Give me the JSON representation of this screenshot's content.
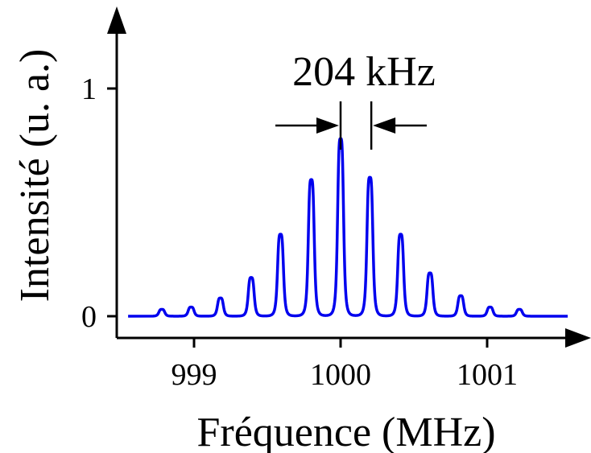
{
  "chart_data": {
    "type": "line",
    "title": "",
    "xlabel": "Fréquence (MHz)",
    "ylabel": "Intensité (u. a.)",
    "xlim": [
      998.5,
      1001.6
    ],
    "ylim": [
      0,
      1
    ],
    "x_ticks": [
      {
        "value": 999,
        "label": "999"
      },
      {
        "value": 1000,
        "label": "1000"
      },
      {
        "value": 1001,
        "label": "1001"
      }
    ],
    "y_ticks": [
      {
        "value": 0,
        "label": "0"
      },
      {
        "value": 1,
        "label": "1"
      }
    ],
    "series": [
      {
        "color": "#0000ee",
        "peaks": [
          {
            "x": 998.78,
            "y": 0.03
          },
          {
            "x": 998.98,
            "y": 0.04
          },
          {
            "x": 999.18,
            "y": 0.08
          },
          {
            "x": 999.39,
            "y": 0.17
          },
          {
            "x": 999.59,
            "y": 0.36
          },
          {
            "x": 999.8,
            "y": 0.6
          },
          {
            "x": 1000.0,
            "y": 0.78
          },
          {
            "x": 1000.2,
            "y": 0.61
          },
          {
            "x": 1000.41,
            "y": 0.36
          },
          {
            "x": 1000.61,
            "y": 0.19
          },
          {
            "x": 1000.82,
            "y": 0.09
          },
          {
            "x": 1001.02,
            "y": 0.04
          },
          {
            "x": 1001.22,
            "y": 0.03
          }
        ],
        "baseline": 0.0
      }
    ],
    "annotations": [
      {
        "text": "204 kHz",
        "from_x": 1000.0,
        "to_x": 1000.204
      }
    ],
    "grid": false,
    "legend": "none"
  }
}
